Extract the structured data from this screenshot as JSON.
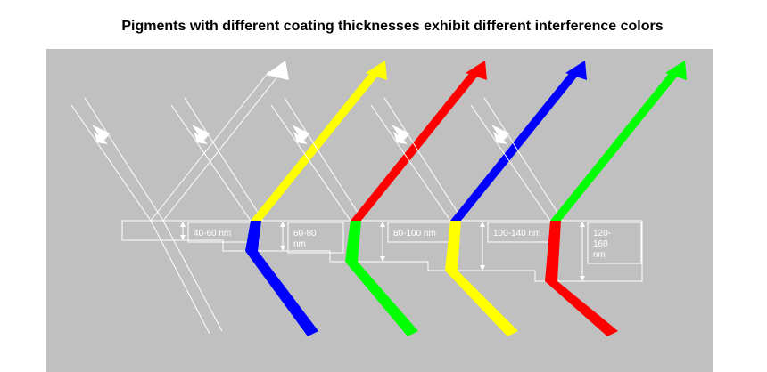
{
  "title": "Pigments with different coating thicknesses exhibit different interference colors",
  "labels": [
    {
      "lines": [
        "40-60 nm"
      ]
    },
    {
      "lines": [
        "60-80",
        "nm"
      ]
    },
    {
      "lines": [
        "80-100 nm"
      ]
    },
    {
      "lines": [
        "100-140 nm"
      ]
    },
    {
      "lines": [
        "120-",
        "160",
        "nm"
      ]
    }
  ]
}
